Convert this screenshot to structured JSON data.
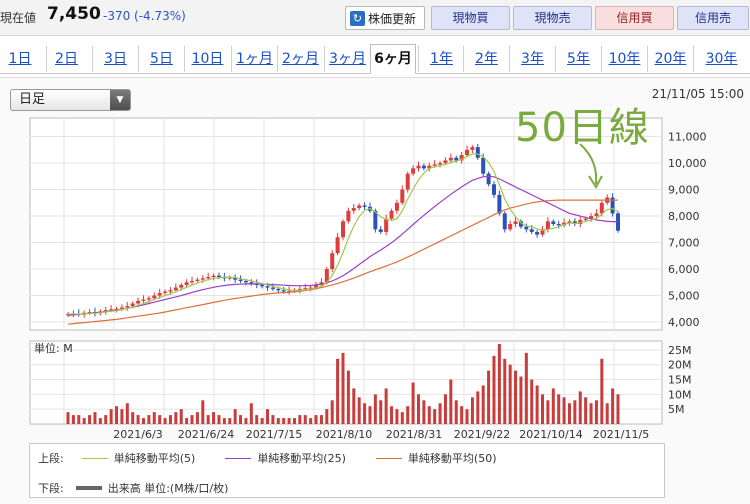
{
  "header": {
    "price_label": "現在値",
    "price_value": "7,450",
    "price_change": "-370 (-4.73%)",
    "refresh_label": "株価更新",
    "buttons": [
      {
        "label": "現物買",
        "color": "#dfe3f8"
      },
      {
        "label": "現物売",
        "color": "#dfe3f8"
      },
      {
        "label": "信用買",
        "color": "#f8dede"
      },
      {
        "label": "信用売",
        "color": "#dfe3f8"
      }
    ]
  },
  "tabs": [
    "1日",
    "2日",
    "3日",
    "5日",
    "10日",
    "1ヶ月",
    "2ヶ月",
    "3ヶ月",
    "6ヶ月",
    "1年",
    "2年",
    "3年",
    "5年",
    "10年",
    "20年",
    "30年"
  ],
  "active_tab": "6ヶ月",
  "chart": {
    "dropdown_value": "日足",
    "datetime": "21/11/05 15:00",
    "annotation": "50日線",
    "volume_unit_label": "単位: M",
    "legend": {
      "upper_label": "上段:",
      "lower_label": "下段:",
      "ma5": "単純移動平均(5)",
      "ma25": "単純移動平均(25)",
      "ma50": "単純移動平均(50)",
      "volume": "出来高 単位:(M株/口/枚)"
    },
    "colors": {
      "up": "#e03c3c",
      "down": "#2a52b8",
      "ma5": "#9fc94a",
      "ma25": "#9a3fc9",
      "ma50": "#e0703a",
      "volume": "#c83c3c"
    }
  },
  "chart_data": {
    "type": "candlestick",
    "x_ticks": [
      "2021/6/3",
      "2021/6/24",
      "2021/7/15",
      "2021/8/10",
      "2021/8/31",
      "2021/9/22",
      "2021/10/14",
      "2021/11/5"
    ],
    "price_axis": {
      "ticks": [
        "4,000",
        "5,000",
        "6,000",
        "7,000",
        "8,000",
        "9,000",
        "10,000",
        "11,000"
      ],
      "ylim": [
        3700,
        11700
      ]
    },
    "volume_axis": {
      "ticks": [
        "5M",
        "10M",
        "15M",
        "20M",
        "25M"
      ],
      "ylim": [
        0,
        28
      ]
    },
    "close": [
      4300,
      4320,
      4280,
      4350,
      4380,
      4330,
      4400,
      4450,
      4480,
      4500,
      4550,
      4600,
      4700,
      4800,
      4850,
      4900,
      5000,
      5100,
      5150,
      5200,
      5300,
      5400,
      5500,
      5550,
      5600,
      5650,
      5700,
      5750,
      5700,
      5650,
      5680,
      5600,
      5550,
      5500,
      5450,
      5400,
      5350,
      5300,
      5250,
      5200,
      5150,
      5180,
      5200,
      5250,
      5280,
      5300,
      5400,
      5500,
      6000,
      6600,
      7200,
      7800,
      8200,
      8300,
      8400,
      8350,
      8200,
      7500,
      7400,
      7900,
      8200,
      8500,
      9000,
      9600,
      9800,
      9900,
      9800,
      9900,
      9950,
      10000,
      10100,
      10200,
      10100,
      10300,
      10500,
      10600,
      10200,
      9600,
      9200,
      8800,
      8100,
      7500,
      7700,
      7800,
      7600,
      7500,
      7400,
      7300,
      7500,
      7800,
      7700,
      7650,
      7750,
      7800,
      7700,
      7850,
      7900,
      8000,
      8100,
      8500,
      8700,
      8100,
      7450
    ],
    "ma25": [
      4250,
      4270,
      4290,
      4310,
      4330,
      4350,
      4370,
      4390,
      4420,
      4450,
      4480,
      4520,
      4560,
      4600,
      4650,
      4700,
      4750,
      4800,
      4850,
      4900,
      4950,
      5000,
      5060,
      5120,
      5170,
      5220,
      5270,
      5310,
      5350,
      5380,
      5400,
      5420,
      5430,
      5440,
      5440,
      5440,
      5430,
      5420,
      5410,
      5400,
      5390,
      5380,
      5370,
      5370,
      5370,
      5380,
      5400,
      5430,
      5480,
      5550,
      5640,
      5750,
      5880,
      6020,
      6170,
      6320,
      6470,
      6600,
      6720,
      6850,
      6990,
      7150,
      7320,
      7500,
      7680,
      7860,
      8030,
      8200,
      8360,
      8520,
      8670,
      8820,
      8960,
      9100,
      9230,
      9350,
      9420,
      9480,
      9500,
      9480,
      9400,
      9300,
      9200,
      9100,
      9000,
      8900,
      8800,
      8700,
      8600,
      8500,
      8400,
      8300,
      8200,
      8100,
      8050,
      8000,
      7950,
      7900,
      7850,
      7830,
      7800,
      7790,
      7780
    ],
    "ma50": [
      3920,
      3940,
      3960,
      3980,
      4000,
      4020,
      4040,
      4060,
      4080,
      4100,
      4130,
      4160,
      4190,
      4220,
      4250,
      4280,
      4310,
      4340,
      4380,
      4420,
      4460,
      4500,
      4540,
      4580,
      4620,
      4660,
      4700,
      4740,
      4780,
      4820,
      4860,
      4890,
      4920,
      4950,
      4980,
      5010,
      5040,
      5060,
      5080,
      5100,
      5110,
      5120,
      5140,
      5160,
      5190,
      5220,
      5260,
      5300,
      5350,
      5400,
      5460,
      5520,
      5590,
      5660,
      5740,
      5820,
      5900,
      5970,
      6040,
      6110,
      6190,
      6270,
      6360,
      6450,
      6550,
      6650,
      6750,
      6850,
      6950,
      7050,
      7150,
      7250,
      7350,
      7450,
      7550,
      7650,
      7750,
      7850,
      7950,
      8050,
      8150,
      8230,
      8300,
      8350,
      8400,
      8450,
      8500,
      8530,
      8560,
      8580,
      8590,
      8600,
      8600,
      8600,
      8600,
      8600,
      8600,
      8600,
      8600,
      8600,
      8600,
      8600,
      8600
    ],
    "volume": [
      4,
      3,
      3,
      2,
      3,
      4,
      2,
      3,
      5,
      6,
      5,
      7,
      4,
      3,
      2,
      3,
      4,
      3,
      2,
      3,
      4,
      5,
      2,
      3,
      4,
      8,
      3,
      4,
      3,
      2,
      2,
      5,
      3,
      2,
      7,
      3,
      2,
      5,
      3,
      2,
      2,
      2,
      2,
      3,
      3,
      2,
      3,
      3,
      5,
      8,
      22,
      24,
      18,
      12,
      9,
      7,
      6,
      10,
      8,
      12,
      6,
      5,
      4,
      6,
      14,
      10,
      8,
      6,
      5,
      7,
      10,
      15,
      8,
      6,
      5,
      9,
      11,
      13,
      18,
      23,
      27,
      22,
      20,
      18,
      16,
      24,
      15,
      13,
      10,
      8,
      12,
      10,
      9,
      7,
      8,
      11,
      9,
      7,
      8,
      22,
      7,
      12,
      10
    ]
  }
}
